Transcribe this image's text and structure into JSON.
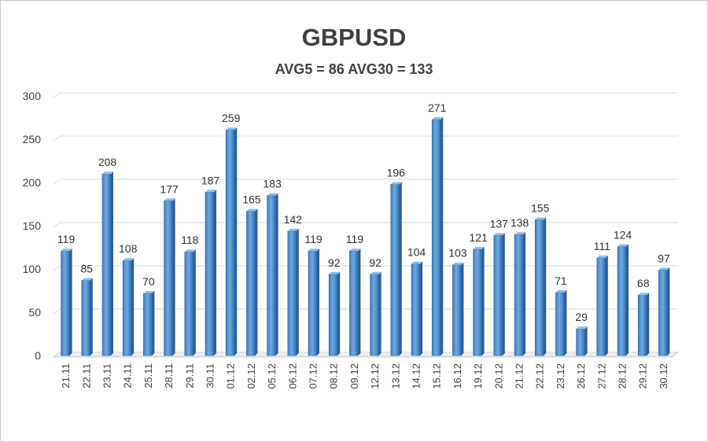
{
  "chart_data": {
    "type": "bar",
    "title": "GBPUSD",
    "subtitle": "AVG5 = 86 AVG30 = 133",
    "xlabel": "",
    "ylabel": "",
    "ylim": [
      0,
      300
    ],
    "yticks": [
      0,
      50,
      100,
      150,
      200,
      250,
      300
    ],
    "grid": true,
    "legend": "none",
    "bar_color": "#5b9bd5",
    "bar_edge_color": "#2e6aa8",
    "categories": [
      "21.11",
      "22.11",
      "23.11",
      "24.11",
      "25.11",
      "28.11",
      "29.11",
      "30.11",
      "01.12",
      "02.12",
      "05.12",
      "06.12",
      "07.12",
      "08.12",
      "09.12",
      "12.12",
      "13.12",
      "14.12",
      "15.12",
      "16.12",
      "19.12",
      "20.12",
      "21.12",
      "22.12",
      "23.12",
      "26.12",
      "27.12",
      "28.12",
      "29.12",
      "30.12"
    ],
    "values": [
      119,
      85,
      208,
      108,
      70,
      177,
      118,
      187,
      259,
      165,
      183,
      142,
      119,
      92,
      119,
      92,
      196,
      104,
      271,
      103,
      121,
      137,
      138,
      155,
      71,
      29,
      111,
      124,
      68,
      97
    ]
  }
}
